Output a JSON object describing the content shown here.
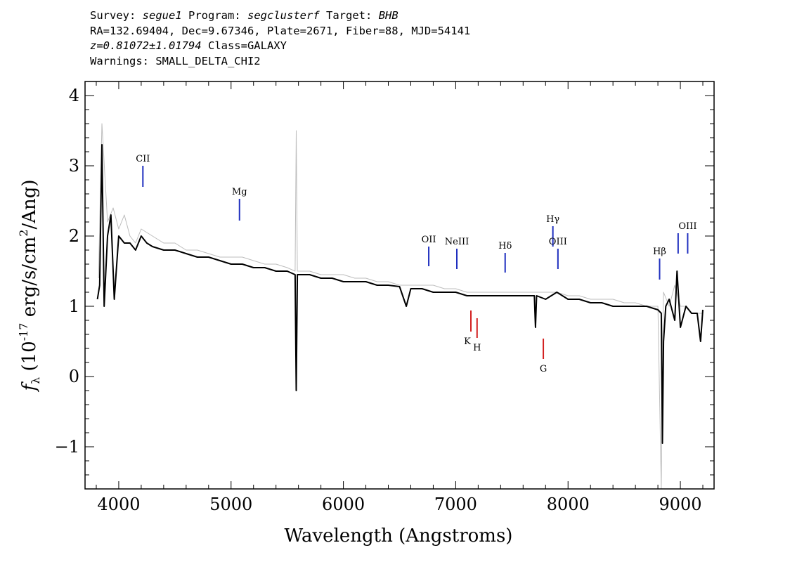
{
  "header": {
    "line1": {
      "survey_label": "Survey:",
      "survey": "segue1",
      "program_label": "Program:",
      "program": "segclusterf",
      "target_label": "Target:",
      "target": "BHB"
    },
    "line2": "RA=132.69404, Dec=9.67346, Plate=2671, Fiber=88, MJD=54141",
    "line3": {
      "z": "z=0.81072±1.01794",
      "class": "Class=GALAXY"
    },
    "line4": "Warnings: SMALL_DELTA_CHI2"
  },
  "chart_data": {
    "type": "line",
    "xlabel": "Wavelength (Angstroms)",
    "ylabel": "f_λ (10^-17 erg/s/cm^2/Ang)",
    "xlim": [
      3700,
      9300
    ],
    "ylim": [
      -1.6,
      4.2
    ],
    "xticks": [
      4000,
      5000,
      6000,
      7000,
      8000,
      9000
    ],
    "yticks": [
      -1,
      0,
      1,
      2,
      3,
      4
    ],
    "grid": false,
    "series": [
      {
        "role": "raw flux",
        "color": "#bdbdbd",
        "x": [
          3820,
          3850,
          3900,
          3950,
          4000,
          4050,
          4100,
          4150,
          4200,
          4300,
          4400,
          4500,
          4600,
          4700,
          4800,
          4900,
          5000,
          5100,
          5200,
          5300,
          5400,
          5500,
          5570,
          5580,
          5590,
          5700,
          5800,
          5900,
          6000,
          6100,
          6200,
          6300,
          6400,
          6500,
          6600,
          6700,
          6800,
          6900,
          7000,
          7100,
          7200,
          7300,
          7400,
          7500,
          7600,
          7700,
          7800,
          7900,
          8000,
          8100,
          8200,
          8300,
          8400,
          8500,
          8600,
          8700,
          8800,
          8830,
          8840,
          8850,
          8900,
          8950,
          9000,
          9050,
          9100,
          9150,
          9200
        ],
        "y": [
          1.4,
          3.6,
          2.2,
          2.4,
          2.1,
          2.3,
          2.0,
          1.9,
          2.1,
          2.0,
          1.9,
          1.9,
          1.8,
          1.8,
          1.75,
          1.7,
          1.7,
          1.7,
          1.65,
          1.6,
          1.6,
          1.55,
          1.5,
          3.5,
          1.5,
          1.5,
          1.45,
          1.45,
          1.45,
          1.4,
          1.4,
          1.35,
          1.35,
          1.3,
          1.3,
          1.3,
          1.3,
          1.25,
          1.25,
          1.2,
          1.2,
          1.2,
          1.2,
          1.2,
          1.2,
          1.2,
          1.2,
          1.2,
          1.15,
          1.15,
          1.1,
          1.1,
          1.1,
          1.05,
          1.05,
          1.0,
          1.0,
          -1.6,
          0.5,
          1.2,
          1.0,
          1.3,
          1.0,
          1.0,
          0.9,
          0.9,
          0.9
        ]
      },
      {
        "role": "smoothed flux",
        "color": "#000000",
        "x": [
          3810,
          3830,
          3850,
          3870,
          3900,
          3930,
          3960,
          4000,
          4050,
          4100,
          4150,
          4200,
          4250,
          4300,
          4400,
          4500,
          4600,
          4700,
          4800,
          4900,
          5000,
          5100,
          5200,
          5300,
          5400,
          5500,
          5570,
          5580,
          5590,
          5700,
          5800,
          5900,
          6000,
          6100,
          6200,
          6300,
          6400,
          6500,
          6560,
          6600,
          6700,
          6800,
          6900,
          7000,
          7100,
          7200,
          7300,
          7400,
          7500,
          7600,
          7700,
          7710,
          7720,
          7800,
          7900,
          8000,
          8100,
          8200,
          8300,
          8400,
          8500,
          8600,
          8700,
          8800,
          8830,
          8840,
          8850,
          8870,
          8900,
          8950,
          8970,
          9000,
          9050,
          9100,
          9150,
          9180,
          9200
        ],
        "y": [
          1.1,
          1.3,
          3.3,
          1.0,
          2.0,
          2.3,
          1.1,
          2.0,
          1.9,
          1.9,
          1.8,
          2.0,
          1.9,
          1.85,
          1.8,
          1.8,
          1.75,
          1.7,
          1.7,
          1.65,
          1.6,
          1.6,
          1.55,
          1.55,
          1.5,
          1.5,
          1.45,
          -0.2,
          1.45,
          1.45,
          1.4,
          1.4,
          1.35,
          1.35,
          1.35,
          1.3,
          1.3,
          1.28,
          1.0,
          1.25,
          1.25,
          1.2,
          1.2,
          1.2,
          1.15,
          1.15,
          1.15,
          1.15,
          1.15,
          1.15,
          1.15,
          0.7,
          1.15,
          1.1,
          1.2,
          1.1,
          1.1,
          1.05,
          1.05,
          1.0,
          1.0,
          1.0,
          1.0,
          0.95,
          0.9,
          -0.95,
          0.5,
          1.0,
          1.1,
          0.8,
          1.5,
          0.7,
          1.0,
          0.9,
          0.9,
          0.5,
          0.95
        ]
      }
    ],
    "line_markers": [
      {
        "label": "CII",
        "x": 4215,
        "y_bottom": 2.7,
        "y_top": 3.0,
        "color": "#1f2fbf",
        "label_position": "above"
      },
      {
        "label": "Mg",
        "x": 5075,
        "y_bottom": 2.22,
        "y_top": 2.53,
        "color": "#1f2fbf",
        "label_position": "above"
      },
      {
        "label": "OII",
        "x": 6760,
        "y_bottom": 1.57,
        "y_top": 1.85,
        "color": "#1f2fbf",
        "label_position": "above"
      },
      {
        "label": "NeIII",
        "x": 7010,
        "y_bottom": 1.53,
        "y_top": 1.82,
        "color": "#1f2fbf",
        "label_position": "above"
      },
      {
        "label": "Hδ",
        "x": 7440,
        "y_bottom": 1.48,
        "y_top": 1.76,
        "color": "#1f2fbf",
        "label_position": "above"
      },
      {
        "label": "Hγ",
        "x": 7865,
        "y_bottom": 1.85,
        "y_top": 2.14,
        "color": "#1f2fbf",
        "label_position": "above"
      },
      {
        "label": "OIII",
        "x": 7910,
        "y_bottom": 1.53,
        "y_top": 1.82,
        "color": "#1f2fbf",
        "label_position": "above"
      },
      {
        "label": "Hβ",
        "x": 8815,
        "y_bottom": 1.38,
        "y_top": 1.68,
        "color": "#1f2fbf",
        "label_position": "above"
      },
      {
        "label": "",
        "x": 8980,
        "y_bottom": 1.75,
        "y_top": 2.04,
        "color": "#1f2fbf",
        "label_position": "none"
      },
      {
        "label": "OIII",
        "x": 9065,
        "y_bottom": 1.75,
        "y_top": 2.04,
        "color": "#1f2fbf",
        "label_position": "above"
      },
      {
        "label": "K",
        "x": 7135,
        "y_bottom": 0.64,
        "y_top": 0.94,
        "color": "#d21f1f",
        "label_position": "below-left"
      },
      {
        "label": "H",
        "x": 7190,
        "y_bottom": 0.55,
        "y_top": 0.83,
        "color": "#d21f1f",
        "label_position": "below"
      },
      {
        "label": "G",
        "x": 7780,
        "y_bottom": 0.25,
        "y_top": 0.54,
        "color": "#d21f1f",
        "label_position": "below"
      }
    ]
  }
}
